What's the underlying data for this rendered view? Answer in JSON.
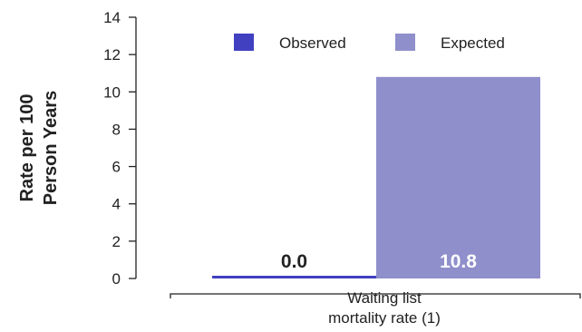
{
  "chart_data": {
    "type": "bar",
    "ylabel_lines": [
      "Rate per 100",
      "Person Years"
    ],
    "ylim": [
      0,
      14
    ],
    "yticks": [
      0,
      2,
      4,
      6,
      8,
      10,
      12,
      14
    ],
    "categories": [
      "Waiting list mortality rate (1)"
    ],
    "category_label_lines": [
      "Waiting list",
      "mortality rate (1)"
    ],
    "series": [
      {
        "name": "Observed",
        "values": [
          0.0
        ],
        "data_labels": [
          "0.0"
        ],
        "color": "#4040c0",
        "label_color": "#222222"
      },
      {
        "name": "Expected",
        "values": [
          10.8
        ],
        "data_labels": [
          "10.8"
        ],
        "color": "#8f8fcc",
        "label_color": "#ffffff"
      }
    ],
    "legend": "top-right",
    "grid": false
  }
}
